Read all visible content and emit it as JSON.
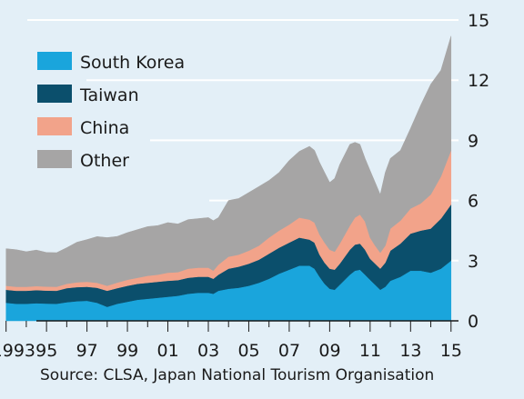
{
  "chart_data": {
    "type": "area",
    "stacked": true,
    "title": "",
    "xlabel": "",
    "ylabel": "",
    "x": [
      1993,
      1993.5,
      1994,
      1994.5,
      1995,
      1995.5,
      1996,
      1996.5,
      1997,
      1997.5,
      1998,
      1998.5,
      1999,
      1999.5,
      2000,
      2000.5,
      2001,
      2001.5,
      2002,
      2002.5,
      2003,
      2003.25,
      2003.5,
      2004,
      2004.5,
      2005,
      2005.5,
      2006,
      2006.5,
      2007,
      2007.5,
      2008,
      2008.25,
      2008.5,
      2008.75,
      2009,
      2009.25,
      2009.5,
      2010,
      2010.25,
      2010.5,
      2010.75,
      2011,
      2011.25,
      2011.5,
      2011.75,
      2012,
      2012.5,
      2013,
      2013.5,
      2014,
      2014.5,
      2015
    ],
    "xlim": [
      1992.7,
      2015.1
    ],
    "ylim": [
      0,
      15
    ],
    "y_ticks": [
      "0",
      "3",
      "6",
      "9",
      "12",
      "15"
    ],
    "x_ticks": [
      "1993",
      "95",
      "97",
      "99",
      "01",
      "03",
      "05",
      "07",
      "09",
      "11",
      "13",
      "15"
    ],
    "grid": true,
    "series": [
      {
        "name": "South Korea",
        "color": "#1aa5dc",
        "values": [
          0.9,
          0.85,
          0.85,
          0.88,
          0.86,
          0.85,
          0.93,
          0.98,
          1.0,
          0.9,
          0.7,
          0.85,
          0.95,
          1.05,
          1.1,
          1.15,
          1.2,
          1.25,
          1.35,
          1.4,
          1.4,
          1.35,
          1.5,
          1.6,
          1.65,
          1.75,
          1.9,
          2.1,
          2.35,
          2.55,
          2.75,
          2.75,
          2.6,
          2.2,
          1.85,
          1.6,
          1.55,
          1.8,
          2.3,
          2.5,
          2.55,
          2.3,
          2.05,
          1.8,
          1.55,
          1.7,
          2.0,
          2.2,
          2.5,
          2.5,
          2.4,
          2.6,
          3.0
        ]
      },
      {
        "name": "Taiwan",
        "color": "#0b4f6c",
        "values": [
          0.65,
          0.65,
          0.65,
          0.65,
          0.65,
          0.65,
          0.7,
          0.7,
          0.7,
          0.75,
          0.8,
          0.78,
          0.8,
          0.8,
          0.8,
          0.8,
          0.8,
          0.78,
          0.8,
          0.8,
          0.8,
          0.75,
          0.8,
          1.0,
          1.05,
          1.1,
          1.15,
          1.25,
          1.3,
          1.35,
          1.4,
          1.3,
          1.3,
          1.1,
          1.05,
          1.0,
          1.0,
          1.05,
          1.25,
          1.3,
          1.3,
          1.25,
          1.05,
          1.05,
          1.05,
          1.2,
          1.5,
          1.65,
          1.85,
          2.0,
          2.2,
          2.5,
          2.8
        ]
      },
      {
        "name": "China",
        "color": "#f2a38a",
        "values": [
          0.2,
          0.2,
          0.2,
          0.2,
          0.2,
          0.2,
          0.22,
          0.24,
          0.25,
          0.25,
          0.25,
          0.28,
          0.3,
          0.3,
          0.35,
          0.35,
          0.4,
          0.4,
          0.45,
          0.45,
          0.45,
          0.4,
          0.5,
          0.6,
          0.6,
          0.65,
          0.7,
          0.8,
          0.85,
          0.9,
          1.0,
          1.0,
          1.0,
          1.0,
          1.0,
          0.95,
          0.9,
          1.0,
          1.2,
          1.35,
          1.45,
          1.4,
          1.05,
          0.9,
          0.8,
          0.85,
          1.1,
          1.15,
          1.25,
          1.35,
          1.7,
          2.1,
          2.7
        ]
      },
      {
        "name": "Other",
        "color": "#a6a5a5",
        "values": [
          1.85,
          1.85,
          1.75,
          1.8,
          1.7,
          1.7,
          1.8,
          2.0,
          2.1,
          2.3,
          2.4,
          2.3,
          2.35,
          2.4,
          2.45,
          2.45,
          2.5,
          2.4,
          2.45,
          2.45,
          2.5,
          2.5,
          2.35,
          2.8,
          2.8,
          2.9,
          2.95,
          2.85,
          2.9,
          3.2,
          3.3,
          3.65,
          3.6,
          3.6,
          3.5,
          3.35,
          3.65,
          3.95,
          4.05,
          3.75,
          3.5,
          3.15,
          3.35,
          3.15,
          2.9,
          3.65,
          3.5,
          3.5,
          4.0,
          4.9,
          5.5,
          5.3,
          5.7
        ]
      }
    ],
    "legend": {
      "position": "top-left",
      "entries": [
        "South Korea",
        "Taiwan",
        "China",
        "Other"
      ]
    },
    "source": "Source: CLSA, Japan National Tourism Organisation"
  },
  "colors": {
    "background": "#e3eff7",
    "grid": "#ffffff",
    "axis": "#1a1a1a"
  }
}
